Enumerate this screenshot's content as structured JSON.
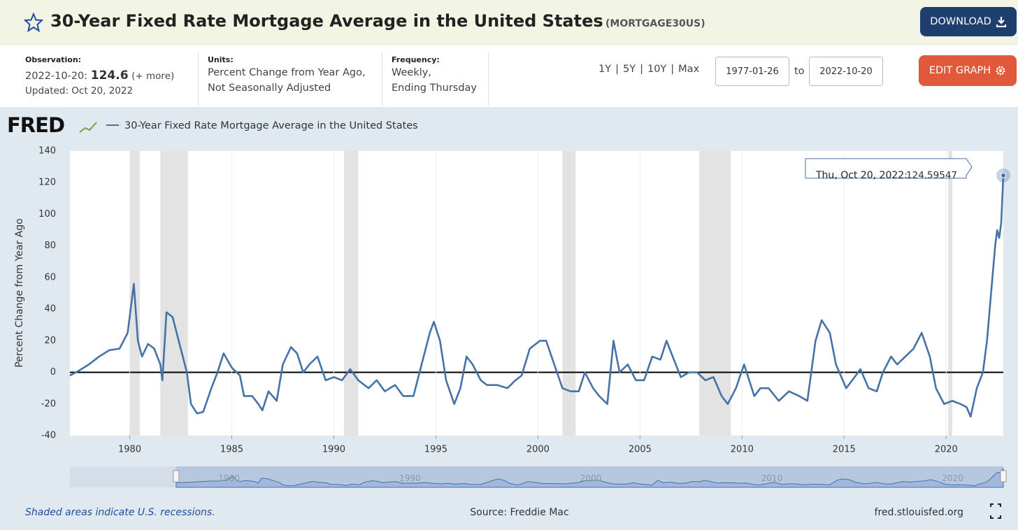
{
  "header": {
    "title": "30-Year Fixed Rate Mortgage Average in the United States",
    "code": "(MORTGAGE30US)",
    "download": "DOWNLOAD"
  },
  "info": {
    "observation_label": "Observation:",
    "observation_date": "2022-10-20:",
    "observation_value": 124.6,
    "more": "(+ more)",
    "updated": "Updated: Oct 20, 2022",
    "units_label": "Units:",
    "units_line1": "Percent Change from Year Ago,",
    "units_line2": "Not Seasonally Adjusted",
    "frequency_label": "Frequency:",
    "frequency_line1": "Weekly,",
    "frequency_line2": "Ending Thursday",
    "ranges": [
      "1Y",
      "5Y",
      "10Y",
      "Max"
    ],
    "start_date": "1977-01-26",
    "to": "to",
    "end_date": "2022-10-20",
    "edit": "EDIT GRAPH"
  },
  "logo": "FRED",
  "chart_data": {
    "type": "line",
    "y_label": "Percent Change from Year Ago",
    "xlim": [
      1977.07,
      2022.8
    ],
    "ylim": [
      -40,
      140
    ],
    "xticks": [
      1980,
      1985,
      1990,
      1995,
      2000,
      2005,
      2010,
      2015,
      2020
    ],
    "yticks": [
      -40,
      -20,
      0,
      20,
      40,
      60,
      80,
      100,
      120,
      140
    ],
    "recessions": [
      [
        1980.0,
        1980.5
      ],
      [
        1981.5,
        1982.85
      ],
      [
        1990.5,
        1991.2
      ],
      [
        2001.2,
        2001.85
      ],
      [
        2007.9,
        2009.45
      ],
      [
        2020.1,
        2020.3
      ]
    ],
    "tooltip_label": "Thu, Oct 20, 2022:",
    "series": [
      {
        "name": "30-Year Fixed Rate Mortgage Average in the United States",
        "color": "#4572a7",
        "x": [
          1977.07,
          1977.5,
          1978,
          1978.5,
          1979,
          1979.5,
          1979.9,
          1980.2,
          1980.4,
          1980.6,
          1980.9,
          1981.2,
          1981.5,
          1981.6,
          1981.8,
          1982.1,
          1982.5,
          1982.8,
          1983,
          1983.3,
          1983.6,
          1984,
          1984.3,
          1984.6,
          1985,
          1985.4,
          1985.6,
          1986,
          1986.3,
          1986.5,
          1986.8,
          1987.2,
          1987.5,
          1987.9,
          1988.2,
          1988.5,
          1988.8,
          1989.2,
          1989.6,
          1990,
          1990.4,
          1990.8,
          1991.2,
          1991.7,
          1992.1,
          1992.5,
          1993,
          1993.4,
          1993.9,
          1994.3,
          1994.7,
          1994.9,
          1995.2,
          1995.5,
          1995.9,
          1996.2,
          1996.5,
          1996.8,
          1997.2,
          1997.5,
          1998,
          1998.5,
          1998.9,
          1999.2,
          1999.6,
          2000.1,
          2000.4,
          2000.8,
          2001.2,
          2001.6,
          2002,
          2002.3,
          2002.7,
          2003,
          2003.4,
          2003.7,
          2004,
          2004.4,
          2004.8,
          2005.2,
          2005.6,
          2006,
          2006.3,
          2006.6,
          2007,
          2007.4,
          2007.8,
          2008.2,
          2008.6,
          2009,
          2009.3,
          2009.7,
          2010.1,
          2010.6,
          2010.9,
          2011.3,
          2011.8,
          2012.3,
          2012.8,
          2013.2,
          2013.6,
          2013.9,
          2014.3,
          2014.6,
          2015.1,
          2015.4,
          2015.8,
          2016.2,
          2016.6,
          2016.9,
          2017.3,
          2017.6,
          2018,
          2018.4,
          2018.8,
          2019.2,
          2019.5,
          2019.9,
          2020.3,
          2020.7,
          2021,
          2021.2,
          2021.5,
          2021.8,
          2022,
          2022.2,
          2022.4,
          2022.5,
          2022.6,
          2022.7,
          2022.8
        ],
        "values": [
          -2,
          1,
          5,
          10,
          14,
          15,
          25,
          56,
          20,
          10,
          18,
          15,
          5,
          -5,
          38,
          35,
          15,
          0,
          -20,
          -26,
          -25,
          -10,
          0,
          12,
          3,
          -2,
          -15,
          -15,
          -20,
          -24,
          -12,
          -18,
          5,
          16,
          12,
          0,
          5,
          10,
          -5,
          -3,
          -5,
          2,
          -5,
          -10,
          -5,
          -12,
          -8,
          -15,
          -15,
          5,
          25,
          32,
          20,
          -5,
          -20,
          -10,
          10,
          5,
          -5,
          -8,
          -8,
          -10,
          -5,
          -2,
          15,
          20,
          20,
          5,
          -10,
          -12,
          -12,
          0,
          -10,
          -15,
          -20,
          20,
          0,
          5,
          -5,
          -5,
          10,
          8,
          20,
          10,
          -3,
          0,
          0,
          -5,
          -3,
          -15,
          -20,
          -10,
          5,
          -15,
          -10,
          -10,
          -18,
          -12,
          -15,
          -18,
          20,
          33,
          25,
          5,
          -10,
          -5,
          2,
          -10,
          -12,
          0,
          10,
          5,
          10,
          15,
          25,
          10,
          -10,
          -20,
          -18,
          -20,
          -22,
          -28,
          -10,
          0,
          20,
          50,
          80,
          90,
          85,
          95,
          124.59547
        ]
      }
    ]
  },
  "navigator": {
    "xlim": [
      1971.2,
      2022.8
    ],
    "ticks": [
      1980,
      1990,
      2000,
      2010,
      2020
    ]
  },
  "footer": {
    "note": "Shaded areas indicate U.S. recessions.",
    "source": "Source: Freddie Mac",
    "site": "fred.stlouisfed.org"
  }
}
